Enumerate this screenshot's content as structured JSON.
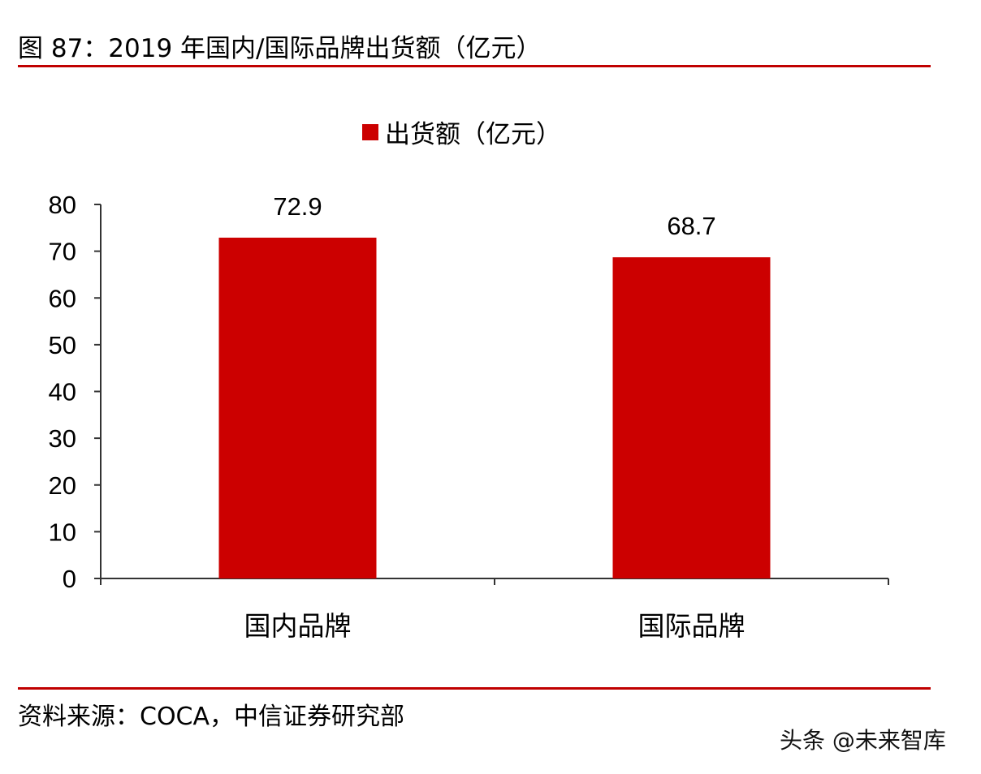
{
  "figure": {
    "title": "图 87：2019 年国内/国际品牌出货额（亿元）",
    "source": "资料来源：COCA，中信证券研究部",
    "watermark": "头条 @未来智库"
  },
  "colors": {
    "bar": "#cc0000",
    "rule": "#c00000",
    "axis": "#333333"
  },
  "chart_data": {
    "type": "bar",
    "title": "",
    "categories": [
      "国内品牌",
      "国际品牌"
    ],
    "series": [
      {
        "name": "出货额（亿元）",
        "values": [
          72.9,
          68.7
        ]
      }
    ],
    "data_labels": [
      "72.9",
      "68.7"
    ],
    "y_ticks": [
      "0",
      "10",
      "20",
      "30",
      "40",
      "50",
      "60",
      "70",
      "80"
    ],
    "ylim": [
      0,
      80
    ],
    "xlabel": "",
    "ylabel": "",
    "legend_position": "top-center",
    "grid": false
  }
}
